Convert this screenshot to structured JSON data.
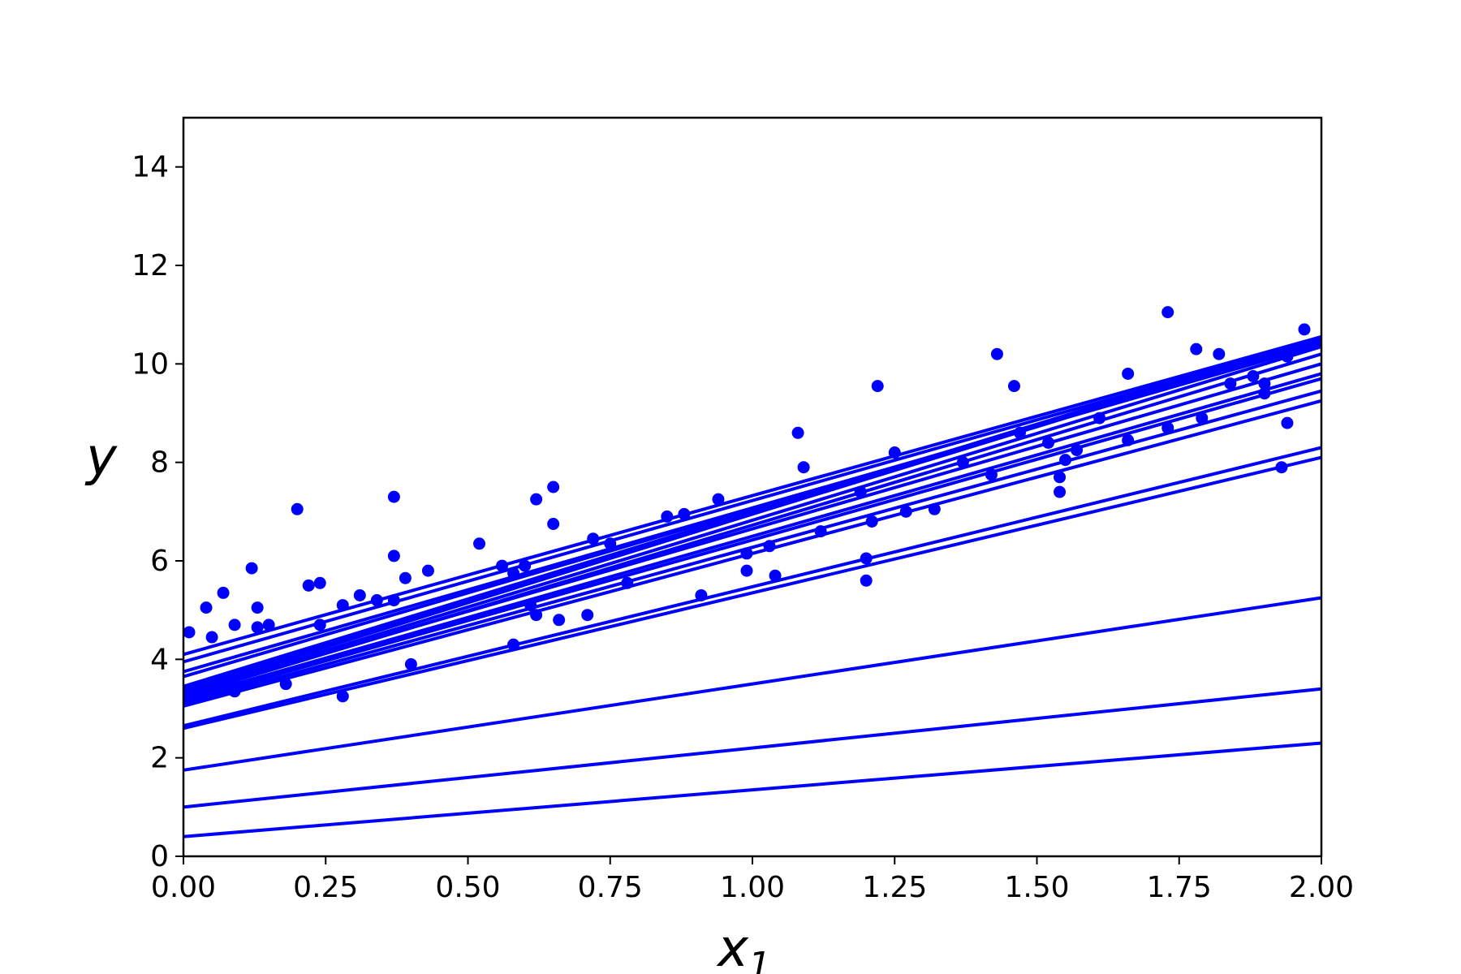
{
  "chart_data": {
    "type": "scatter",
    "title": "",
    "xlabel": "x",
    "xlabel_subscript": "1",
    "ylabel": "y",
    "xlim": [
      0,
      2
    ],
    "ylim": [
      0,
      15
    ],
    "x_ticks": [
      0,
      0.25,
      0.5,
      0.75,
      1.0,
      1.25,
      1.5,
      1.75,
      2.0
    ],
    "x_tick_labels": [
      "0.00",
      "0.25",
      "0.50",
      "0.75",
      "1.00",
      "1.25",
      "1.50",
      "1.75",
      "2.00"
    ],
    "y_ticks": [
      0,
      2,
      4,
      6,
      8,
      10,
      12,
      14
    ],
    "y_tick_labels": [
      "0",
      "2",
      "4",
      "6",
      "8",
      "10",
      "12",
      "14"
    ],
    "grid": false,
    "color": "#0000ff",
    "points": [
      [
        0.01,
        4.55
      ],
      [
        0.04,
        5.05
      ],
      [
        0.05,
        4.45
      ],
      [
        0.07,
        5.35
      ],
      [
        0.09,
        3.35
      ],
      [
        0.09,
        4.7
      ],
      [
        0.12,
        5.85
      ],
      [
        0.13,
        5.05
      ],
      [
        0.13,
        4.65
      ],
      [
        0.15,
        4.7
      ],
      [
        0.18,
        3.5
      ],
      [
        0.2,
        7.05
      ],
      [
        0.22,
        5.5
      ],
      [
        0.24,
        5.55
      ],
      [
        0.24,
        4.7
      ],
      [
        0.28,
        5.1
      ],
      [
        0.28,
        3.25
      ],
      [
        0.31,
        5.3
      ],
      [
        0.34,
        5.2
      ],
      [
        0.37,
        5.2
      ],
      [
        0.37,
        6.1
      ],
      [
        0.37,
        7.3
      ],
      [
        0.39,
        5.65
      ],
      [
        0.4,
        3.9
      ],
      [
        0.43,
        5.8
      ],
      [
        0.52,
        6.35
      ],
      [
        0.56,
        5.9
      ],
      [
        0.58,
        4.3
      ],
      [
        0.58,
        5.75
      ],
      [
        0.6,
        5.9
      ],
      [
        0.61,
        5.1
      ],
      [
        0.62,
        4.9
      ],
      [
        0.62,
        7.25
      ],
      [
        0.65,
        7.5
      ],
      [
        0.65,
        6.75
      ],
      [
        0.66,
        4.8
      ],
      [
        0.71,
        4.9
      ],
      [
        0.72,
        6.45
      ],
      [
        0.75,
        6.35
      ],
      [
        0.78,
        5.55
      ],
      [
        0.85,
        6.9
      ],
      [
        0.88,
        6.95
      ],
      [
        0.91,
        5.3
      ],
      [
        0.94,
        7.25
      ],
      [
        0.99,
        6.15
      ],
      [
        0.99,
        5.8
      ],
      [
        1.03,
        6.3
      ],
      [
        1.04,
        5.7
      ],
      [
        1.08,
        8.6
      ],
      [
        1.09,
        7.9
      ],
      [
        1.12,
        6.6
      ],
      [
        1.19,
        7.4
      ],
      [
        1.2,
        6.05
      ],
      [
        1.2,
        5.6
      ],
      [
        1.21,
        6.8
      ],
      [
        1.22,
        9.55
      ],
      [
        1.25,
        8.2
      ],
      [
        1.27,
        7.0
      ],
      [
        1.32,
        7.05
      ],
      [
        1.37,
        8.0
      ],
      [
        1.42,
        7.75
      ],
      [
        1.43,
        10.2
      ],
      [
        1.46,
        9.55
      ],
      [
        1.47,
        8.6
      ],
      [
        1.52,
        8.4
      ],
      [
        1.54,
        7.7
      ],
      [
        1.54,
        7.4
      ],
      [
        1.55,
        8.05
      ],
      [
        1.57,
        8.25
      ],
      [
        1.61,
        8.9
      ],
      [
        1.66,
        9.8
      ],
      [
        1.66,
        8.45
      ],
      [
        1.73,
        8.7
      ],
      [
        1.73,
        11.05
      ],
      [
        1.78,
        10.3
      ],
      [
        1.79,
        8.9
      ],
      [
        1.82,
        10.2
      ],
      [
        1.84,
        9.6
      ],
      [
        1.88,
        9.75
      ],
      [
        1.9,
        9.6
      ],
      [
        1.9,
        9.4
      ],
      [
        1.93,
        7.9
      ],
      [
        1.94,
        8.8
      ],
      [
        1.94,
        10.15
      ],
      [
        1.97,
        10.7
      ]
    ],
    "lines": [
      [
        4.1,
        10.55
      ],
      [
        3.95,
        10.5
      ],
      [
        3.75,
        10.4
      ],
      [
        3.65,
        10.45
      ],
      [
        3.45,
        10.55
      ],
      [
        3.4,
        10.5
      ],
      [
        3.35,
        10.55
      ],
      [
        3.3,
        10.35
      ],
      [
        3.25,
        10.2
      ],
      [
        3.3,
        10.0
      ],
      [
        3.2,
        9.8
      ],
      [
        3.15,
        9.7
      ],
      [
        3.1,
        9.45
      ],
      [
        3.05,
        9.25
      ],
      [
        2.65,
        8.3
      ],
      [
        2.6,
        8.1
      ],
      [
        1.75,
        5.25
      ],
      [
        1.0,
        3.4
      ],
      [
        0.4,
        2.3
      ]
    ]
  }
}
